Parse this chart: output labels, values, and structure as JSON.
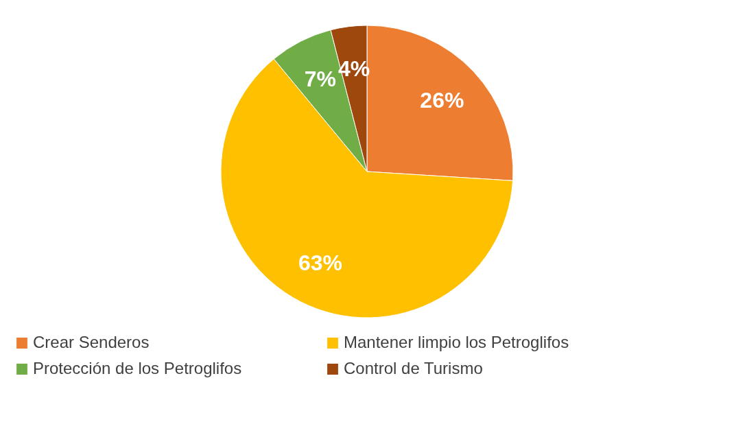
{
  "chart_data": {
    "type": "pie",
    "categories": [
      "Crear Senderos",
      "Mantener limpio los Petroglifos",
      "Protección de los Petroglifos",
      "Control de Turismo"
    ],
    "values": [
      26,
      63,
      7,
      4
    ],
    "colors": [
      "#ed7d31",
      "#ffc000",
      "#70ad47",
      "#9e480e"
    ],
    "value_labels": [
      "26%",
      "63%",
      "7%",
      "4%"
    ],
    "legend": "bottom"
  }
}
